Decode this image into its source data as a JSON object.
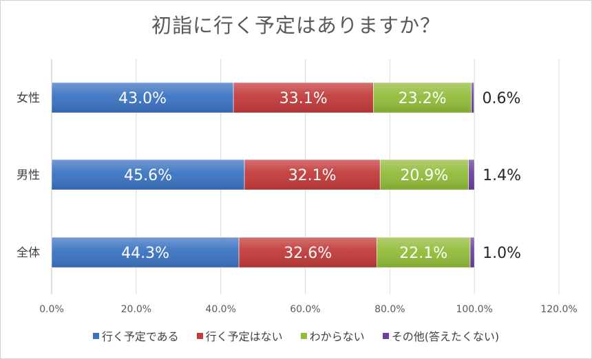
{
  "chart_data": {
    "type": "bar",
    "orientation": "horizontal",
    "stacked": true,
    "title": "初詣に行く予定はありますか？",
    "categories": [
      "女性",
      "男性",
      "全体"
    ],
    "series": [
      {
        "name": "行く予定である",
        "color": "#3b73c1",
        "values": [
          43.0,
          45.6,
          44.3
        ]
      },
      {
        "name": "行く予定はない",
        "color": "#c23a3a",
        "values": [
          33.1,
          32.1,
          32.6
        ]
      },
      {
        "name": "わからない",
        "color": "#92bc3a",
        "values": [
          23.2,
          20.9,
          22.1
        ]
      },
      {
        "name": "その他(答えたくない)",
        "color": "#6b3fa0",
        "values": [
          0.6,
          1.4,
          1.0
        ]
      }
    ],
    "data_labels": [
      [
        "43.0%",
        "33.1%",
        "23.2%",
        "0.6%"
      ],
      [
        "45.6%",
        "32.1%",
        "20.9%",
        "1.4%"
      ],
      [
        "44.3%",
        "32.6%",
        "22.1%",
        "1.0%"
      ]
    ],
    "x_ticks": [
      "0.0%",
      "20.0%",
      "40.0%",
      "60.0%",
      "80.0%",
      "100.0%",
      "120.0%"
    ],
    "xlim": [
      0,
      120
    ],
    "grid": true,
    "legend_position": "bottom"
  }
}
